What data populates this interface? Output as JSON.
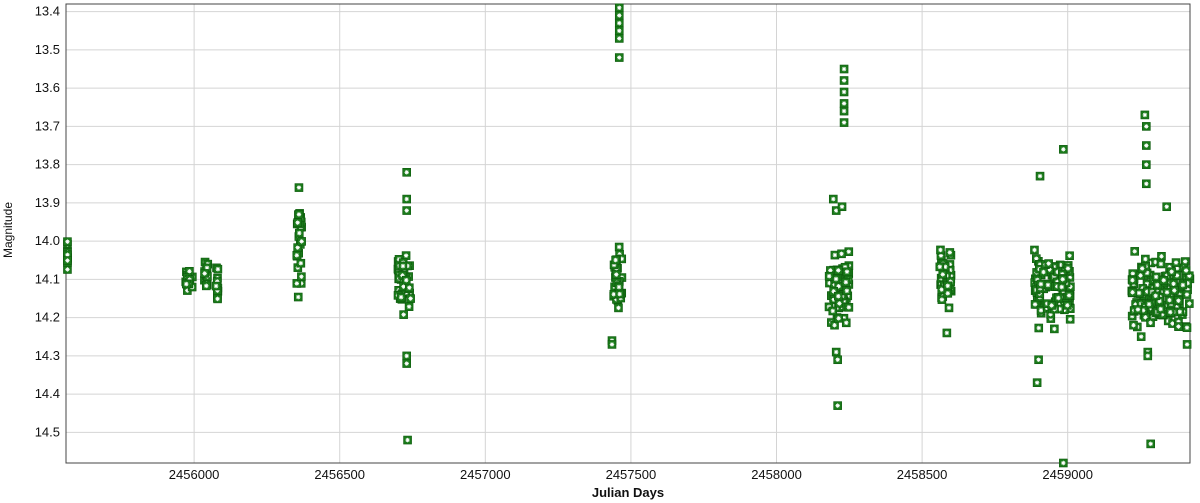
{
  "chart_data": {
    "type": "scatter",
    "xlabel": "Julian Days",
    "ylabel": "Magnitude",
    "xlim": [
      2455560,
      2459420
    ],
    "ylim": [
      14.58,
      13.38
    ],
    "y_inverted": true,
    "grid": true,
    "xticks": [
      2456000,
      2456500,
      2457000,
      2457500,
      2458000,
      2458500,
      2459000
    ],
    "yticks": [
      13.4,
      13.5,
      13.6,
      13.7,
      13.8,
      13.9,
      14.0,
      14.1,
      14.2,
      14.3,
      14.4,
      14.5
    ],
    "xtick_labels": [
      "2456000",
      "2456500",
      "2457000",
      "2457500",
      "2458000",
      "2458500",
      "2459000"
    ],
    "ytick_labels": [
      "13.4",
      "13.5",
      "13.6",
      "13.7",
      "13.8",
      "13.9",
      "14.0",
      "14.1",
      "14.2",
      "14.3",
      "14.4",
      "14.5"
    ],
    "marker": {
      "shape": "square-star",
      "color": "#1a7a1a"
    },
    "clusters": [
      {
        "x": [
          2455565,
          2455565
        ],
        "y": [
          13.95,
          14.14
        ],
        "n": 12
      },
      {
        "x": [
          2455970,
          2455995
        ],
        "y": [
          14.06,
          14.14
        ],
        "n": 14
      },
      {
        "x": [
          2456035,
          2456050
        ],
        "y": [
          14.05,
          14.15
        ],
        "n": 12
      },
      {
        "x": [
          2456075,
          2456085
        ],
        "y": [
          14.02,
          14.18
        ],
        "n": 12
      },
      {
        "x": [
          2456350,
          2456370
        ],
        "y": [
          13.86,
          14.19
        ],
        "n": 24
      },
      {
        "x": [
          2456700,
          2456745
        ],
        "y": [
          14.0,
          14.23
        ],
        "n": 40
      },
      {
        "x": [
          2457440,
          2457470
        ],
        "y": [
          14.0,
          14.22
        ],
        "n": 30
      },
      {
        "x": [
          2458180,
          2458250
        ],
        "y": [
          14.0,
          14.26
        ],
        "n": 70
      },
      {
        "x": [
          2458560,
          2458600
        ],
        "y": [
          14.0,
          14.2
        ],
        "n": 40
      },
      {
        "x": [
          2458885,
          2459010
        ],
        "y": [
          14.0,
          14.26
        ],
        "n": 110
      },
      {
        "x": [
          2459220,
          2459420
        ],
        "y": [
          14.0,
          14.28
        ],
        "n": 140
      }
    ],
    "outliers": [
      {
        "x": 2457460,
        "y": 13.39
      },
      {
        "x": 2457460,
        "y": 13.41
      },
      {
        "x": 2457460,
        "y": 13.43
      },
      {
        "x": 2457460,
        "y": 13.45
      },
      {
        "x": 2457460,
        "y": 13.47
      },
      {
        "x": 2457460,
        "y": 13.52
      },
      {
        "x": 2458232,
        "y": 13.55
      },
      {
        "x": 2458232,
        "y": 13.58
      },
      {
        "x": 2458232,
        "y": 13.61
      },
      {
        "x": 2458232,
        "y": 13.64
      },
      {
        "x": 2458232,
        "y": 13.66
      },
      {
        "x": 2458232,
        "y": 13.69
      },
      {
        "x": 2456360,
        "y": 13.86
      },
      {
        "x": 2456360,
        "y": 13.93
      },
      {
        "x": 2456730,
        "y": 13.82
      },
      {
        "x": 2456730,
        "y": 13.89
      },
      {
        "x": 2456730,
        "y": 13.92
      },
      {
        "x": 2456730,
        "y": 14.3
      },
      {
        "x": 2456730,
        "y": 14.32
      },
      {
        "x": 2456733,
        "y": 14.52
      },
      {
        "x": 2457435,
        "y": 14.26
      },
      {
        "x": 2457435,
        "y": 14.27
      },
      {
        "x": 2458195,
        "y": 13.89
      },
      {
        "x": 2458205,
        "y": 13.92
      },
      {
        "x": 2458225,
        "y": 13.91
      },
      {
        "x": 2458205,
        "y": 14.29
      },
      {
        "x": 2458210,
        "y": 14.31
      },
      {
        "x": 2458210,
        "y": 14.43
      },
      {
        "x": 2458585,
        "y": 14.24
      },
      {
        "x": 2458895,
        "y": 14.37
      },
      {
        "x": 2458900,
        "y": 14.31
      },
      {
        "x": 2458905,
        "y": 13.83
      },
      {
        "x": 2458985,
        "y": 13.76
      },
      {
        "x": 2458985,
        "y": 14.58
      },
      {
        "x": 2459265,
        "y": 13.67
      },
      {
        "x": 2459270,
        "y": 13.7
      },
      {
        "x": 2459270,
        "y": 13.75
      },
      {
        "x": 2459270,
        "y": 13.8
      },
      {
        "x": 2459270,
        "y": 13.85
      },
      {
        "x": 2459340,
        "y": 13.91
      },
      {
        "x": 2459275,
        "y": 14.29
      },
      {
        "x": 2459275,
        "y": 14.3
      },
      {
        "x": 2459285,
        "y": 14.53
      },
      {
        "x": 2459410,
        "y": 14.27
      }
    ]
  }
}
